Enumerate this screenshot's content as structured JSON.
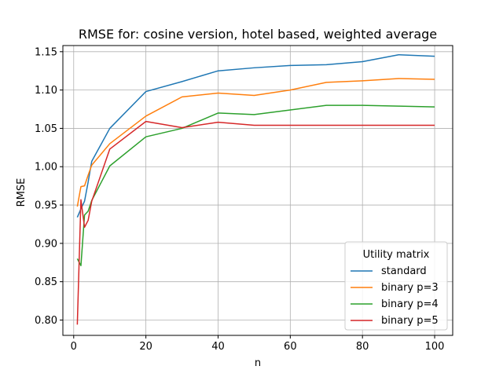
{
  "chart_data": {
    "type": "line",
    "title": "RMSE for: cosine version, hotel based, weighted average",
    "xlabel": "n",
    "ylabel": "RMSE",
    "xlim": [
      -3,
      105
    ],
    "ylim": [
      0.78,
      1.158
    ],
    "xticks": [
      0,
      20,
      40,
      60,
      80,
      100
    ],
    "xtick_labels": [
      "0",
      "20",
      "40",
      "60",
      "80",
      "100"
    ],
    "yticks": [
      0.8,
      0.85,
      0.9,
      0.95,
      1.0,
      1.05,
      1.1,
      1.15
    ],
    "ytick_labels": [
      "0.80",
      "0.85",
      "0.90",
      "0.95",
      "1.00",
      "1.05",
      "1.10",
      "1.15"
    ],
    "grid": true,
    "legend": {
      "title": "Utility matrix",
      "placement": "lower-right"
    },
    "series": [
      {
        "name": "standard",
        "color": "#1f77b4",
        "x": [
          1,
          2,
          3,
          4,
          5,
          10,
          20,
          30,
          40,
          50,
          60,
          70,
          80,
          90,
          100
        ],
        "y": [
          0.934,
          0.945,
          0.955,
          0.98,
          1.007,
          1.05,
          1.098,
          1.111,
          1.125,
          1.129,
          1.132,
          1.133,
          1.137,
          1.146,
          1.144
        ]
      },
      {
        "name": "binary p=3",
        "color": "#ff7f0e",
        "x": [
          1,
          2,
          3,
          4,
          5,
          10,
          20,
          30,
          40,
          50,
          60,
          70,
          80,
          90,
          100
        ],
        "y": [
          0.948,
          0.974,
          0.975,
          0.989,
          1.002,
          1.03,
          1.066,
          1.091,
          1.096,
          1.093,
          1.1,
          1.11,
          1.112,
          1.115,
          1.114
        ]
      },
      {
        "name": "binary p=4",
        "color": "#2ca02c",
        "x": [
          1,
          2,
          3,
          4,
          5,
          10,
          20,
          30,
          40,
          50,
          60,
          70,
          80,
          90,
          100
        ],
        "y": [
          0.88,
          0.871,
          0.937,
          0.942,
          0.956,
          1.001,
          1.039,
          1.05,
          1.07,
          1.068,
          1.074,
          1.08,
          1.08,
          1.079,
          1.078
        ]
      },
      {
        "name": "binary p=5",
        "color": "#d62728",
        "x": [
          1,
          2,
          3,
          4,
          5,
          10,
          20,
          30,
          40,
          50,
          60,
          70,
          80,
          90,
          100
        ],
        "y": [
          0.794,
          0.957,
          0.921,
          0.93,
          0.955,
          1.023,
          1.059,
          1.051,
          1.058,
          1.054,
          1.054,
          1.054,
          1.054,
          1.054,
          1.054
        ]
      }
    ]
  }
}
